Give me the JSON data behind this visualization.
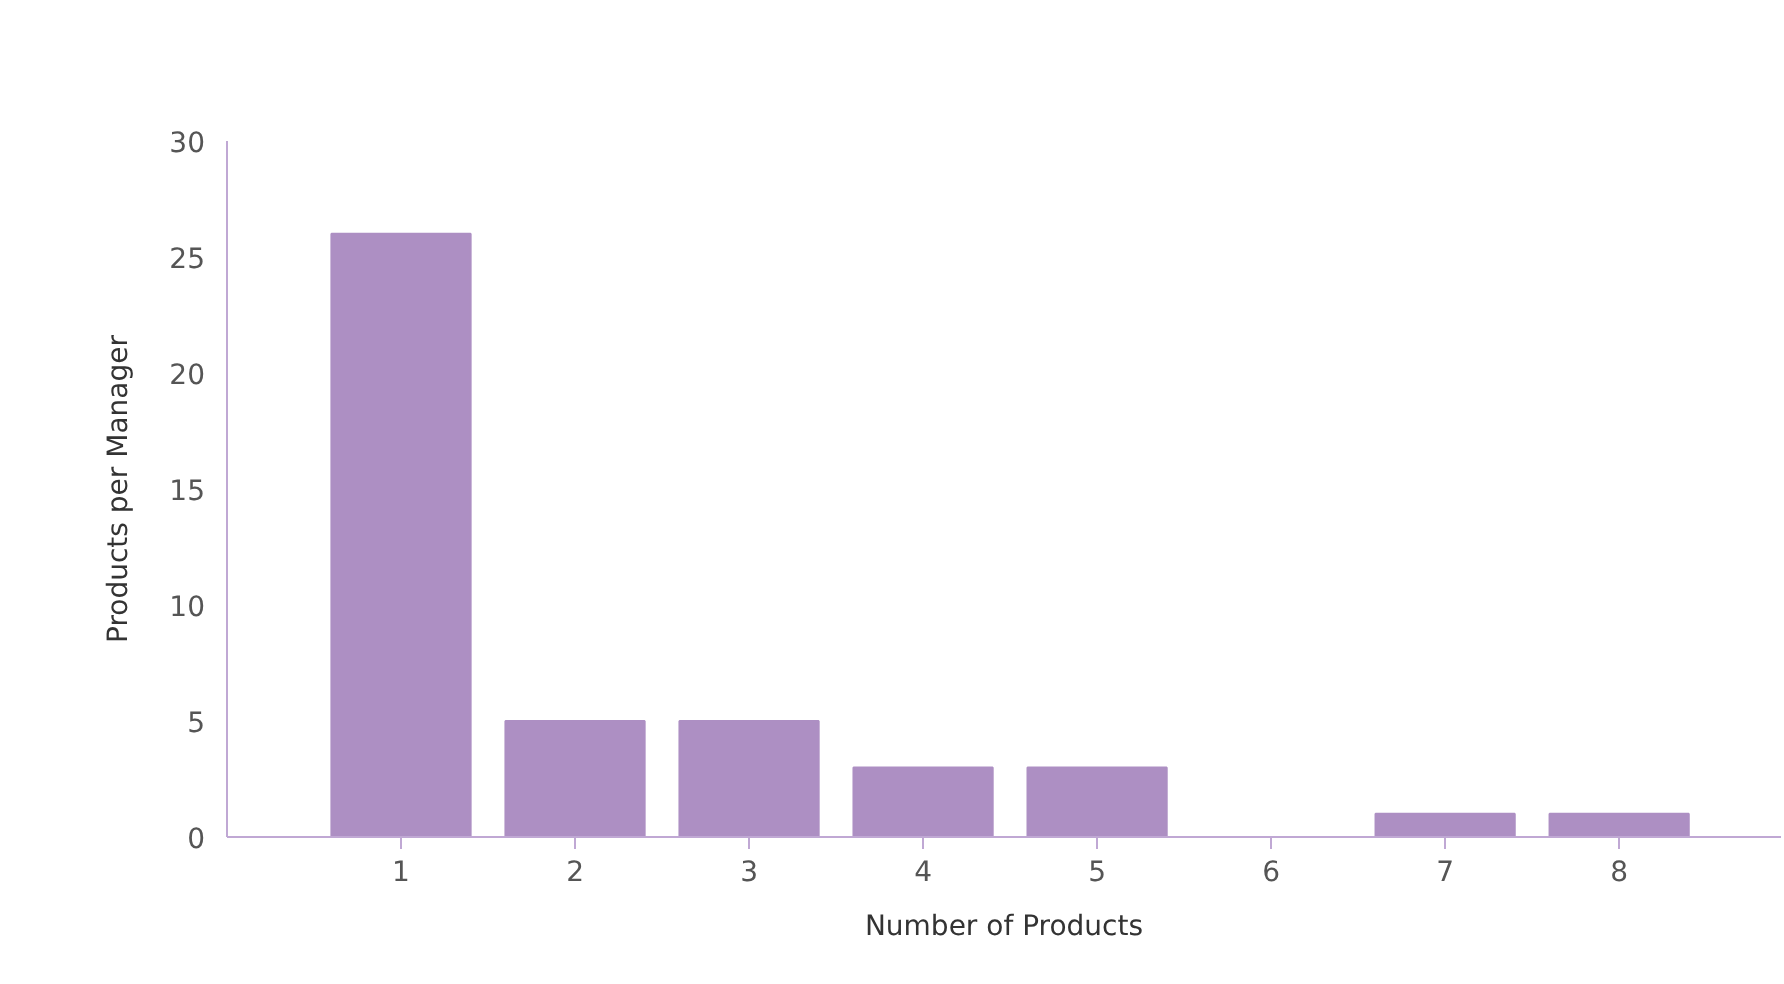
{
  "chart_data": {
    "type": "bar",
    "xlabel": "Number of Products",
    "ylabel": "Products per Manager",
    "categories": [
      "1",
      "2",
      "3",
      "4",
      "5",
      "6",
      "7",
      "8"
    ],
    "values": [
      26,
      5,
      5,
      3,
      3,
      0,
      1,
      1
    ],
    "color": "#ad8fc3",
    "ylim": [
      0,
      30
    ],
    "yticks": [
      0,
      5,
      10,
      15,
      20,
      25,
      30
    ],
    "grid": false
  }
}
